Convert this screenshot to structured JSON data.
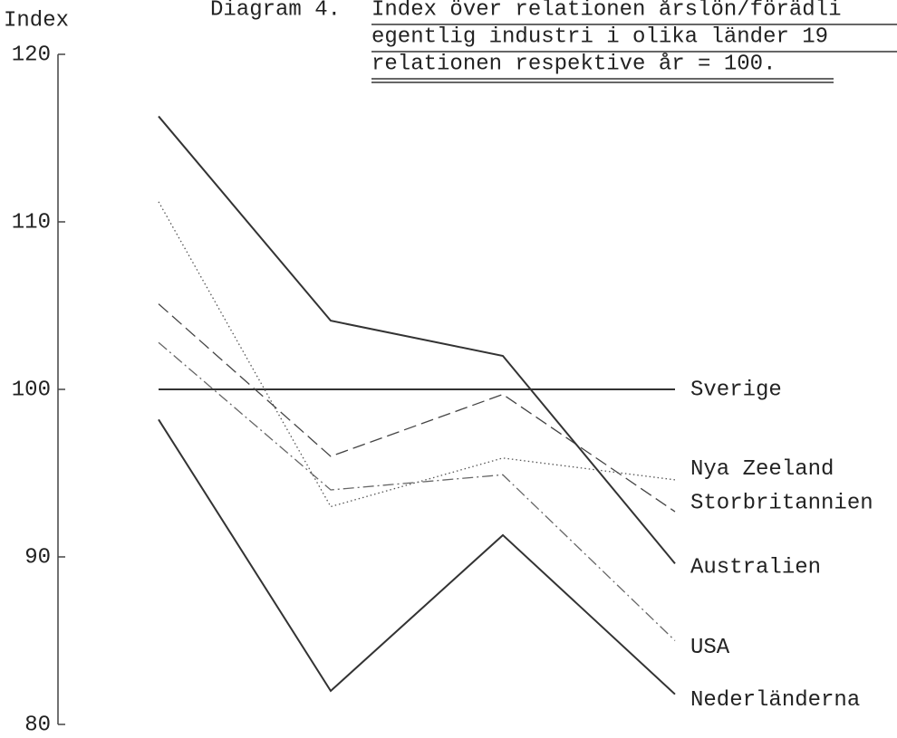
{
  "chart_data": {
    "type": "line",
    "title": "Diagram 4.",
    "subtitle": [
      "Index över relationen årslön/förädli",
      "egentlig industri i olika länder 19",
      "relationen respektive år = 100."
    ],
    "y_label": "Index",
    "categories": [
      null,
      null,
      null,
      null
    ],
    "ylim": [
      80,
      120
    ],
    "yticks": [
      80,
      90,
      100,
      110,
      120
    ],
    "grid": false,
    "series": [
      {
        "name": "Sverige",
        "color": "#333333",
        "style": "solid",
        "values": [
          100,
          100,
          100,
          100
        ]
      },
      {
        "name": "Nya Zeeland",
        "color": "#555555",
        "style": "dotted",
        "values": [
          111.2,
          93.0,
          95.9,
          94.6
        ]
      },
      {
        "name": "Storbritannien",
        "color": "#444444",
        "style": "dashed",
        "values": [
          105.1,
          96.0,
          99.7,
          92.7
        ]
      },
      {
        "name": "Australien",
        "color": "#333333",
        "style": "solid",
        "values": [
          116.3,
          104.1,
          102.0,
          89.6
        ]
      },
      {
        "name": "USA",
        "color": "#666666",
        "style": "dashdot",
        "values": [
          102.8,
          94.0,
          94.9,
          85.0
        ]
      },
      {
        "name": "Nederländerna",
        "color": "#333333",
        "style": "solid",
        "values": [
          98.2,
          82.0,
          91.3,
          81.8
        ]
      }
    ]
  }
}
